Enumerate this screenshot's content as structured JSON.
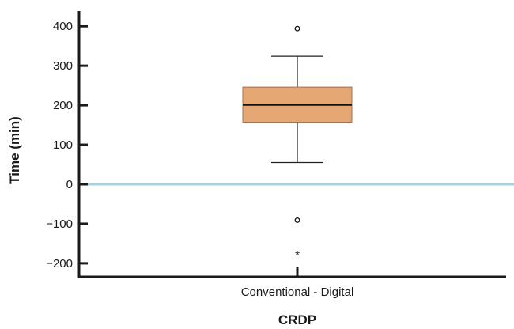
{
  "chart_data": {
    "type": "box",
    "title": "",
    "xlabel": "CRDP",
    "ylabel": "Time (min)",
    "ylim": [
      -235,
      440
    ],
    "yticks": [
      -200,
      -100,
      0,
      100,
      200,
      300,
      400
    ],
    "ytick_labels": [
      "−200",
      "−100",
      "0",
      "100",
      "200",
      "300",
      "400"
    ],
    "categories": [
      "Conventional - Digital"
    ],
    "boxes": [
      {
        "category": "Conventional - Digital",
        "whisker_low": 55,
        "q1": 157,
        "median": 201,
        "q3": 246,
        "whisker_high": 324,
        "outliers": [
          {
            "value": 394,
            "marker": "circle"
          },
          {
            "value": -91,
            "marker": "circle"
          },
          {
            "value": -173,
            "marker": "star",
            "label": "*"
          }
        ]
      }
    ],
    "reference_line": {
      "y": 0
    },
    "colors": {
      "box_fill": "#e5a774",
      "box_stroke": "#a07050",
      "reference_line": "#a9cfe6",
      "axis": "#1a1a1a"
    },
    "grid": false
  }
}
